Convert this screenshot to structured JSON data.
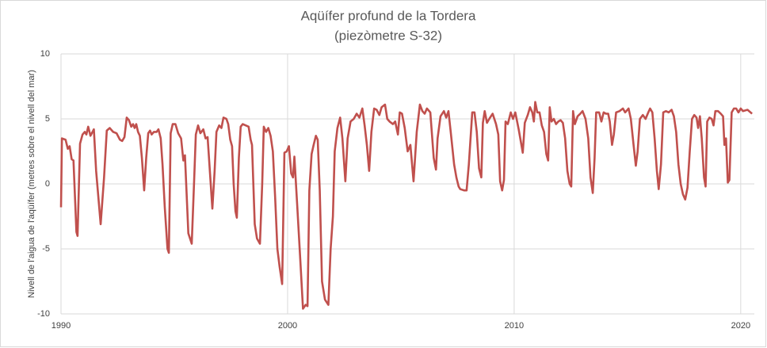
{
  "chart_data": {
    "type": "line",
    "title": "Aqüífer profund de la Tordera",
    "subtitle": "(piezòmetre S-32)",
    "y_label": "Nivell de l'aigua de l'aqüífer  (metres sobre el nivell del mar)",
    "xlim": [
      1990,
      2020.6
    ],
    "xticks": [
      1990,
      2000,
      2010,
      2020
    ],
    "ylim": [
      -10,
      10
    ],
    "yticks": [
      -10,
      -5,
      0,
      5,
      10
    ],
    "grid": true,
    "x": [
      1990.0,
      1990.04,
      1990.2,
      1990.3,
      1990.38,
      1990.47,
      1990.55,
      1990.68,
      1990.73,
      1990.84,
      1990.95,
      1991.05,
      1991.12,
      1991.2,
      1991.3,
      1991.45,
      1991.55,
      1991.75,
      1991.9,
      1992.02,
      1992.15,
      1992.3,
      1992.45,
      1992.6,
      1992.7,
      1992.8,
      1992.9,
      1993.0,
      1993.1,
      1993.18,
      1993.25,
      1993.32,
      1993.4,
      1993.48,
      1993.57,
      1993.67,
      1993.76,
      1993.85,
      1993.93,
      1994.0,
      1994.1,
      1994.22,
      1994.3,
      1994.4,
      1994.48,
      1994.58,
      1994.7,
      1994.76,
      1994.84,
      1994.93,
      1995.05,
      1995.17,
      1995.3,
      1995.4,
      1995.47,
      1995.62,
      1995.77,
      1995.87,
      1995.95,
      1996.05,
      1996.15,
      1996.28,
      1996.38,
      1996.47,
      1996.68,
      1996.78,
      1996.86,
      1996.98,
      1997.08,
      1997.17,
      1997.3,
      1997.38,
      1997.47,
      1997.55,
      1997.62,
      1997.7,
      1997.76,
      1997.85,
      1997.93,
      1998.02,
      1998.15,
      1998.28,
      1998.37,
      1998.43,
      1998.55,
      1998.65,
      1998.78,
      1998.88,
      1998.95,
      1999.05,
      1999.15,
      1999.25,
      1999.35,
      1999.45,
      1999.55,
      1999.65,
      1999.76,
      1999.86,
      1999.96,
      2000.06,
      2000.16,
      2000.24,
      2000.3,
      2000.42,
      2000.55,
      2000.68,
      2000.8,
      2000.88,
      2000.96,
      2001.06,
      2001.15,
      2001.25,
      2001.33,
      2001.42,
      2001.52,
      2001.65,
      2001.8,
      2001.9,
      2002.0,
      2002.08,
      2002.2,
      2002.32,
      2002.42,
      2002.55,
      2002.65,
      2002.78,
      2002.92,
      2003.05,
      2003.17,
      2003.3,
      2003.4,
      2003.5,
      2003.6,
      2003.7,
      2003.82,
      2003.93,
      2004.05,
      2004.15,
      2004.3,
      2004.4,
      2004.5,
      2004.65,
      2004.75,
      2004.87,
      2004.95,
      2005.05,
      2005.17,
      2005.3,
      2005.42,
      2005.56,
      2005.7,
      2005.84,
      2005.95,
      2006.05,
      2006.15,
      2006.3,
      2006.45,
      2006.55,
      2006.62,
      2006.75,
      2006.9,
      2007.0,
      2007.1,
      2007.2,
      2007.35,
      2007.45,
      2007.55,
      2007.62,
      2007.8,
      2007.9,
      2008.0,
      2008.15,
      2008.25,
      2008.35,
      2008.45,
      2008.55,
      2008.62,
      2008.7,
      2008.8,
      2008.9,
      2009.05,
      2009.2,
      2009.3,
      2009.38,
      2009.47,
      2009.55,
      2009.62,
      2009.72,
      2009.85,
      2009.95,
      2010.05,
      2010.2,
      2010.3,
      2010.38,
      2010.47,
      2010.6,
      2010.7,
      2010.8,
      2010.87,
      2010.93,
      2011.02,
      2011.12,
      2011.22,
      2011.32,
      2011.42,
      2011.5,
      2011.57,
      2011.65,
      2011.75,
      2011.85,
      2011.95,
      2012.05,
      2012.15,
      2012.25,
      2012.35,
      2012.45,
      2012.52,
      2012.6,
      2012.68,
      2012.8,
      2012.92,
      2013.02,
      2013.15,
      2013.27,
      2013.37,
      2013.47,
      2013.55,
      2013.62,
      2013.75,
      2013.85,
      2013.95,
      2014.05,
      2014.15,
      2014.22,
      2014.32,
      2014.4,
      2014.5,
      2014.65,
      2014.8,
      2014.9,
      2015.05,
      2015.15,
      2015.27,
      2015.37,
      2015.45,
      2015.55,
      2015.68,
      2015.8,
      2015.92,
      2016.0,
      2016.1,
      2016.2,
      2016.3,
      2016.38,
      2016.48,
      2016.58,
      2016.7,
      2016.82,
      2016.95,
      2017.05,
      2017.15,
      2017.25,
      2017.35,
      2017.45,
      2017.55,
      2017.65,
      2017.75,
      2017.85,
      2017.95,
      2018.05,
      2018.12,
      2018.2,
      2018.28,
      2018.38,
      2018.45,
      2018.52,
      2018.62,
      2018.72,
      2018.8,
      2018.88,
      2019.0,
      2019.12,
      2019.22,
      2019.28,
      2019.35,
      2019.43,
      2019.5,
      2019.6,
      2019.7,
      2019.8,
      2019.9,
      2020.0,
      2020.1,
      2020.3,
      2020.5
    ],
    "series": [
      {
        "name": "S-32",
        "color": "#c0504d",
        "values": [
          -1.8,
          3.5,
          3.4,
          2.7,
          2.9,
          1.9,
          1.8,
          -3.7,
          -4.0,
          3.1,
          3.8,
          4.0,
          3.8,
          4.4,
          3.7,
          4.2,
          1.0,
          -3.1,
          0.5,
          4.1,
          4.3,
          4.0,
          3.9,
          3.4,
          3.3,
          3.6,
          5.1,
          4.9,
          4.4,
          4.6,
          4.3,
          4.6,
          4.0,
          3.7,
          2.0,
          -0.5,
          2.0,
          3.9,
          4.1,
          3.8,
          4.0,
          4.0,
          4.2,
          3.5,
          1.5,
          -1.8,
          -5.0,
          -5.3,
          3.9,
          4.6,
          4.6,
          3.9,
          3.5,
          1.8,
          2.2,
          -3.8,
          -4.6,
          0.0,
          3.8,
          4.5,
          3.9,
          4.2,
          3.5,
          3.6,
          -1.9,
          1.0,
          4.0,
          4.5,
          4.3,
          5.1,
          5.0,
          4.6,
          3.4,
          2.9,
          0.0,
          -2.1,
          -2.6,
          2.0,
          4.4,
          4.6,
          4.5,
          4.4,
          3.4,
          3.0,
          -3.1,
          -4.2,
          -4.6,
          0.0,
          4.4,
          4.0,
          4.3,
          3.7,
          2.5,
          -1.0,
          -5.0,
          -6.4,
          -7.7,
          2.4,
          2.5,
          2.9,
          0.8,
          0.5,
          2.1,
          -1.5,
          -5.5,
          -9.6,
          -9.3,
          -9.4,
          -0.5,
          2.3,
          3.0,
          3.7,
          3.4,
          -0.5,
          -7.5,
          -8.9,
          -9.3,
          -5.0,
          -2.5,
          2.5,
          4.3,
          5.1,
          3.5,
          0.2,
          3.5,
          4.8,
          5.0,
          5.4,
          5.1,
          5.8,
          4.5,
          3.0,
          1.0,
          4.0,
          5.8,
          5.7,
          5.3,
          5.9,
          6.1,
          5.0,
          4.8,
          4.6,
          4.8,
          3.8,
          5.5,
          5.4,
          4.3,
          2.5,
          3.0,
          0.2,
          4.0,
          6.1,
          5.6,
          5.4,
          5.8,
          5.5,
          2.0,
          1.1,
          3.5,
          5.2,
          5.6,
          5.1,
          5.6,
          4.0,
          1.5,
          0.5,
          -0.2,
          -0.4,
          -0.5,
          -0.5,
          1.5,
          5.5,
          5.5,
          4.0,
          1.2,
          0.5,
          4.7,
          5.6,
          4.7,
          5.0,
          5.4,
          4.6,
          3.8,
          0.2,
          -0.5,
          0.3,
          4.8,
          4.6,
          5.5,
          5.0,
          5.5,
          4.2,
          3.2,
          2.4,
          4.7,
          5.3,
          5.9,
          5.5,
          4.8,
          6.3,
          5.5,
          5.5,
          4.5,
          4.0,
          2.3,
          1.8,
          5.9,
          4.8,
          5.0,
          4.6,
          4.8,
          4.9,
          4.7,
          3.5,
          1.0,
          0.0,
          -0.2,
          5.6,
          4.6,
          5.2,
          5.4,
          5.6,
          5.0,
          3.5,
          0.5,
          -0.7,
          2.0,
          5.5,
          5.5,
          4.8,
          5.5,
          5.4,
          5.4,
          4.8,
          3.0,
          3.8,
          5.5,
          5.6,
          5.8,
          5.5,
          5.8,
          5.0,
          3.0,
          1.4,
          2.5,
          5.0,
          5.3,
          5.0,
          5.5,
          5.8,
          5.5,
          3.5,
          1.0,
          -0.4,
          1.5,
          5.5,
          5.6,
          5.5,
          5.7,
          5.2,
          4.0,
          1.5,
          0.0,
          -0.8,
          -1.2,
          -0.3,
          2.5,
          5.0,
          5.3,
          5.1,
          4.3,
          5.2,
          3.5,
          0.5,
          -0.2,
          4.8,
          5.1,
          5.0,
          4.5,
          5.6,
          5.6,
          5.4,
          5.2,
          3.0,
          3.5,
          0.1,
          0.3,
          5.5,
          5.8,
          5.8,
          5.5,
          5.8,
          5.6,
          5.7,
          5.4
        ]
      }
    ]
  }
}
